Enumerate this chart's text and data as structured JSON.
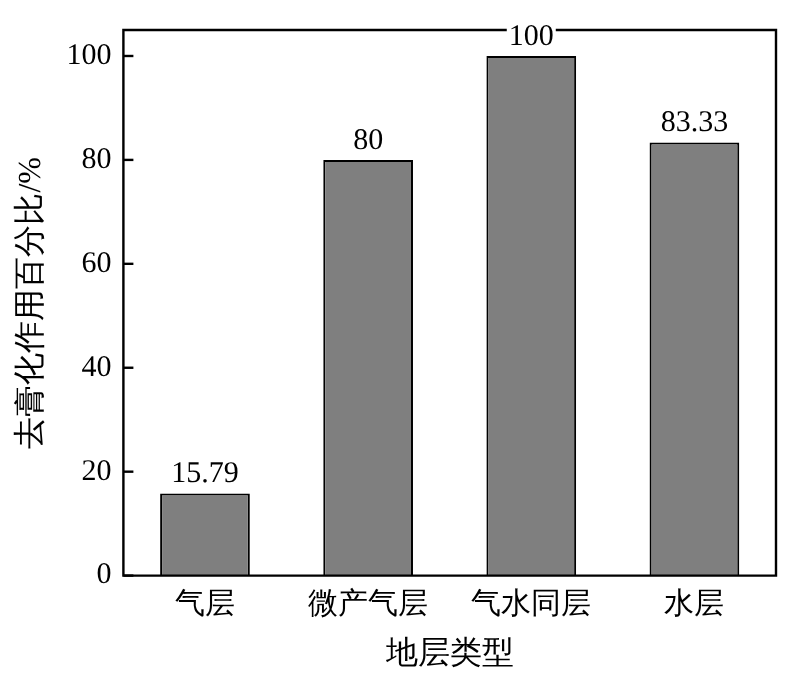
{
  "chart_data": {
    "type": "bar",
    "xlabel": "地层类型",
    "ylabel": "去膏化作用百分比/%",
    "categories": [
      "气层",
      "微产气层",
      "气水同层",
      "水层"
    ],
    "values": [
      15.79,
      80,
      100,
      83.33
    ],
    "color": "#7f7f7f",
    "ylim": [
      0,
      105
    ],
    "yticks": [
      0,
      20,
      40,
      60,
      80,
      100
    ],
    "grid": false,
    "data_labels": true
  }
}
